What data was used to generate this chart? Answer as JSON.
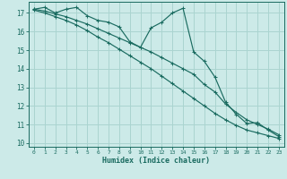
{
  "xlabel": "Humidex (Indice chaleur)",
  "bg_color": "#cceae8",
  "grid_color": "#aad4d0",
  "line_color": "#1a6b60",
  "x_ticks": [
    0,
    1,
    2,
    3,
    4,
    5,
    6,
    7,
    8,
    9,
    10,
    11,
    12,
    13,
    14,
    15,
    16,
    17,
    18,
    19,
    20,
    21,
    22,
    23
  ],
  "y_ticks": [
    10,
    11,
    12,
    13,
    14,
    15,
    16,
    17
  ],
  "xlim": [
    -0.5,
    23.5
  ],
  "ylim": [
    9.8,
    17.6
  ],
  "jagged_x": [
    0,
    1,
    2,
    3,
    4,
    5,
    6,
    7,
    8,
    9,
    10,
    11,
    12,
    13,
    14,
    15,
    16,
    17,
    18,
    19,
    20,
    21,
    22,
    23
  ],
  "jagged_y": [
    17.2,
    17.3,
    17.0,
    17.2,
    17.3,
    16.85,
    16.6,
    16.5,
    16.25,
    15.45,
    15.15,
    16.2,
    16.5,
    17.0,
    17.25,
    14.9,
    14.4,
    13.55,
    12.2,
    11.55,
    11.05,
    11.1,
    10.7,
    10.35
  ],
  "line1_x": [
    0,
    1,
    2,
    3,
    4,
    5,
    6,
    7,
    8,
    9,
    10,
    11,
    12,
    13,
    14,
    15,
    16,
    17,
    18,
    19,
    20,
    21,
    22,
    23
  ],
  "line1_y": [
    17.2,
    17.1,
    16.95,
    16.8,
    16.6,
    16.4,
    16.15,
    15.9,
    15.65,
    15.4,
    15.15,
    14.9,
    14.6,
    14.3,
    14.0,
    13.7,
    13.15,
    12.75,
    12.1,
    11.65,
    11.25,
    11.0,
    10.75,
    10.45
  ],
  "line2_x": [
    0,
    1,
    2,
    3,
    4,
    5,
    6,
    7,
    8,
    9,
    10,
    11,
    12,
    13,
    14,
    15,
    16,
    17,
    18,
    19,
    20,
    21,
    22,
    23
  ],
  "line2_y": [
    17.15,
    17.0,
    16.8,
    16.6,
    16.35,
    16.05,
    15.7,
    15.4,
    15.05,
    14.7,
    14.35,
    14.0,
    13.6,
    13.2,
    12.8,
    12.4,
    12.0,
    11.6,
    11.25,
    10.95,
    10.7,
    10.55,
    10.4,
    10.25
  ]
}
